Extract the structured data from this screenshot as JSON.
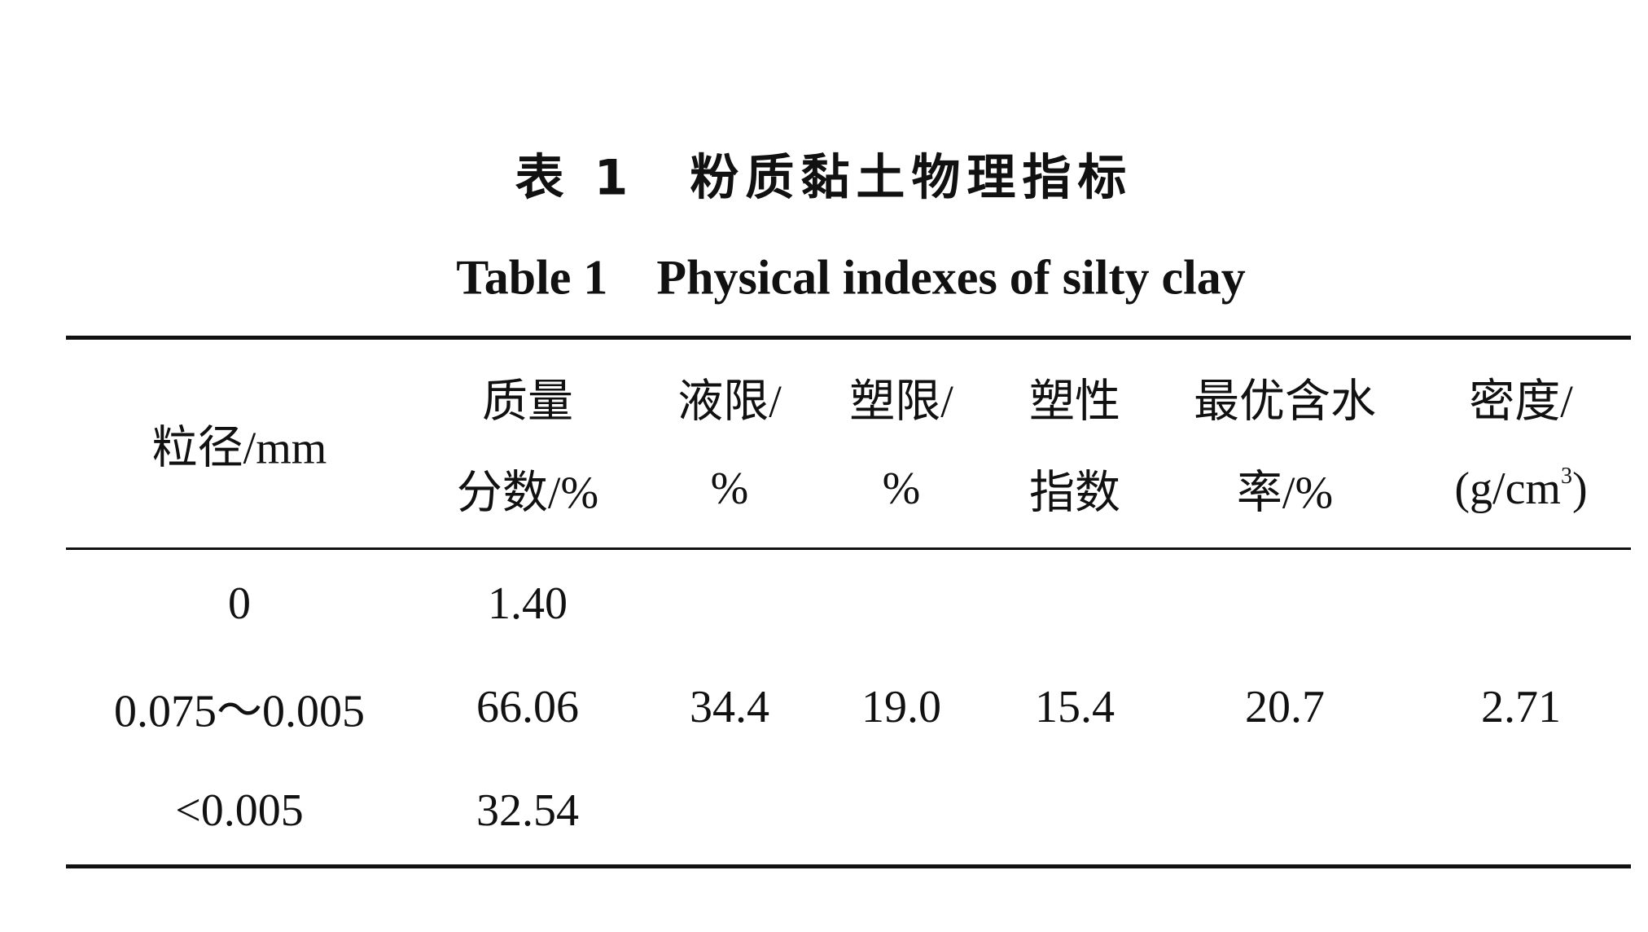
{
  "title_zh": "表 1　粉质黏土物理指标",
  "title_en": "Table 1　Physical indexes of silty clay",
  "table": {
    "header": [
      [
        "粒径/mm"
      ],
      [
        "质量",
        "分数/%"
      ],
      [
        "液限/",
        "%"
      ],
      [
        "塑限/",
        "%"
      ],
      [
        "塑性",
        "指数"
      ],
      [
        "最优含水",
        "率/%"
      ],
      [
        "密度/",
        {
          "text": "(g/cm",
          "sup": "3",
          "after": ")"
        }
      ]
    ],
    "rows": [
      [
        "0",
        "1.40"
      ],
      [
        "0.075～0.005",
        "66.06"
      ],
      [
        "<0.005",
        "32.54"
      ]
    ],
    "shared": [
      "34.4",
      "19.0",
      "15.4",
      "20.7",
      "2.71"
    ]
  }
}
